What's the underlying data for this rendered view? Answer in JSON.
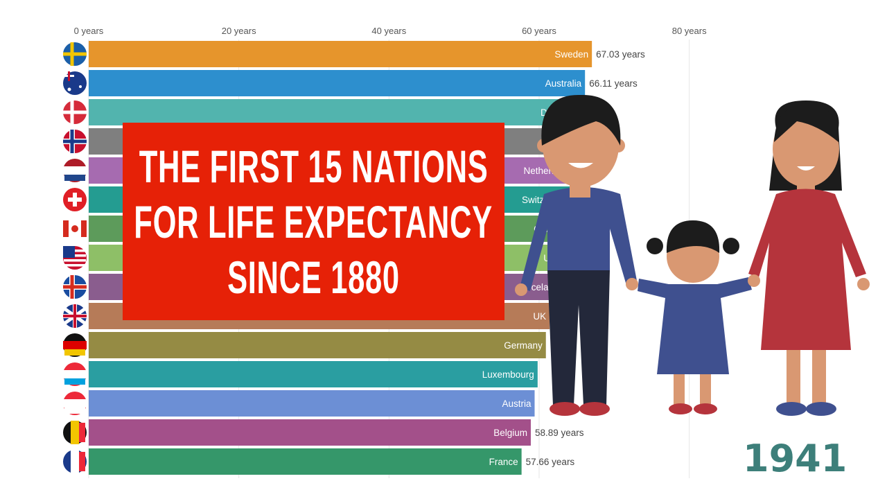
{
  "chart_data": {
    "type": "bar",
    "orientation": "horizontal",
    "xlim": [
      0,
      90
    ],
    "x_ticks": [
      0,
      20,
      40,
      60,
      80
    ],
    "x_tick_labels": [
      "0 years",
      "20 years",
      "40 years",
      "60 years",
      "80 years"
    ],
    "grid": true,
    "categories": [
      "Sweden",
      "Australia",
      "Denmark",
      "Norway",
      "Netherlands",
      "Switzerland",
      "Canada",
      "USA",
      "Iceland",
      "UK",
      "Germany",
      "Luxembourg",
      "Austria",
      "Belgium",
      "France"
    ],
    "values": [
      67.03,
      66.11,
      65.7,
      65.5,
      65.1,
      64.6,
      64.1,
      63.6,
      63.1,
      61.4,
      60.9,
      59.8,
      59.4,
      58.89,
      57.66
    ],
    "value_labels": [
      "67.03 years",
      "66.11 years",
      "",
      "",
      "",
      "",
      "",
      "",
      "",
      "",
      "",
      "",
      "",
      "58.89 years",
      "57.66 years"
    ],
    "colors": [
      "#e6952c",
      "#2d8fce",
      "#52b4ae",
      "#7f7f7f",
      "#a66bb0",
      "#249c91",
      "#5d9b5b",
      "#8ebf67",
      "#8a5d8e",
      "#b67b58",
      "#958b44",
      "#2a9ea1",
      "#6c8fd5",
      "#a3508a",
      "#35976a"
    ],
    "flags": [
      "sweden",
      "australia",
      "denmark",
      "norway",
      "netherlands",
      "switzerland",
      "canada",
      "usa",
      "iceland",
      "uk",
      "germany",
      "luxembourg",
      "austria",
      "belgium",
      "france"
    ]
  },
  "banner": {
    "lines": [
      "THE FIRST 15 NATIONS",
      "FOR LIFE EXPECTANCY",
      "SINCE 1880"
    ],
    "color": "#e62107"
  },
  "year": "1941",
  "year_color": "#3d7f7a"
}
